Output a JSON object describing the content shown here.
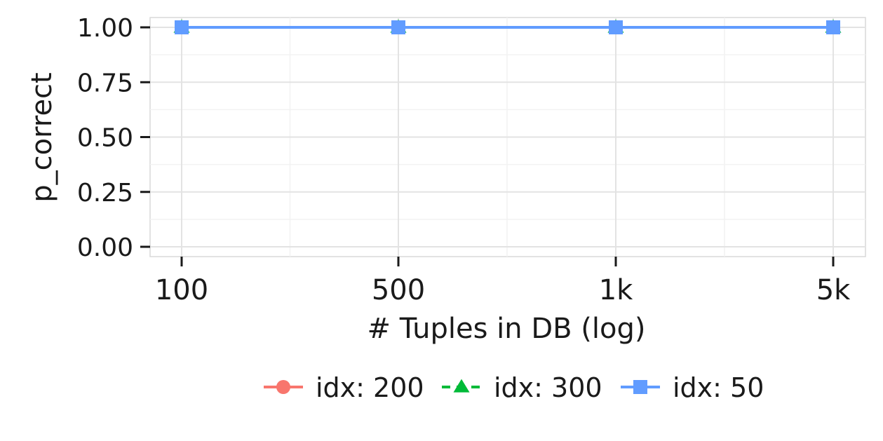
{
  "chart_data": {
    "type": "line",
    "x": [
      "100",
      "500",
      "1k",
      "5k"
    ],
    "xlabel": "# Tuples in DB (log)",
    "ylabel": "p_correct",
    "ylim": [
      0,
      1
    ],
    "yticks": [
      "0.00",
      "0.25",
      "0.50",
      "0.75",
      "1.00"
    ],
    "grid": true,
    "legend_position": "bottom",
    "series": [
      {
        "name": "idx: 200",
        "values": [
          1.0,
          1.0,
          1.0,
          1.0
        ],
        "color": "#F8766D",
        "marker": "circle",
        "linestyle": "solid"
      },
      {
        "name": "idx: 300",
        "values": [
          1.0,
          1.0,
          1.0,
          1.0
        ],
        "color": "#00BA38",
        "marker": "triangle",
        "linestyle": "dashed"
      },
      {
        "name": "idx: 50",
        "values": [
          1.0,
          1.0,
          1.0,
          1.0
        ],
        "color": "#619CFF",
        "marker": "square",
        "linestyle": "solid"
      }
    ]
  }
}
